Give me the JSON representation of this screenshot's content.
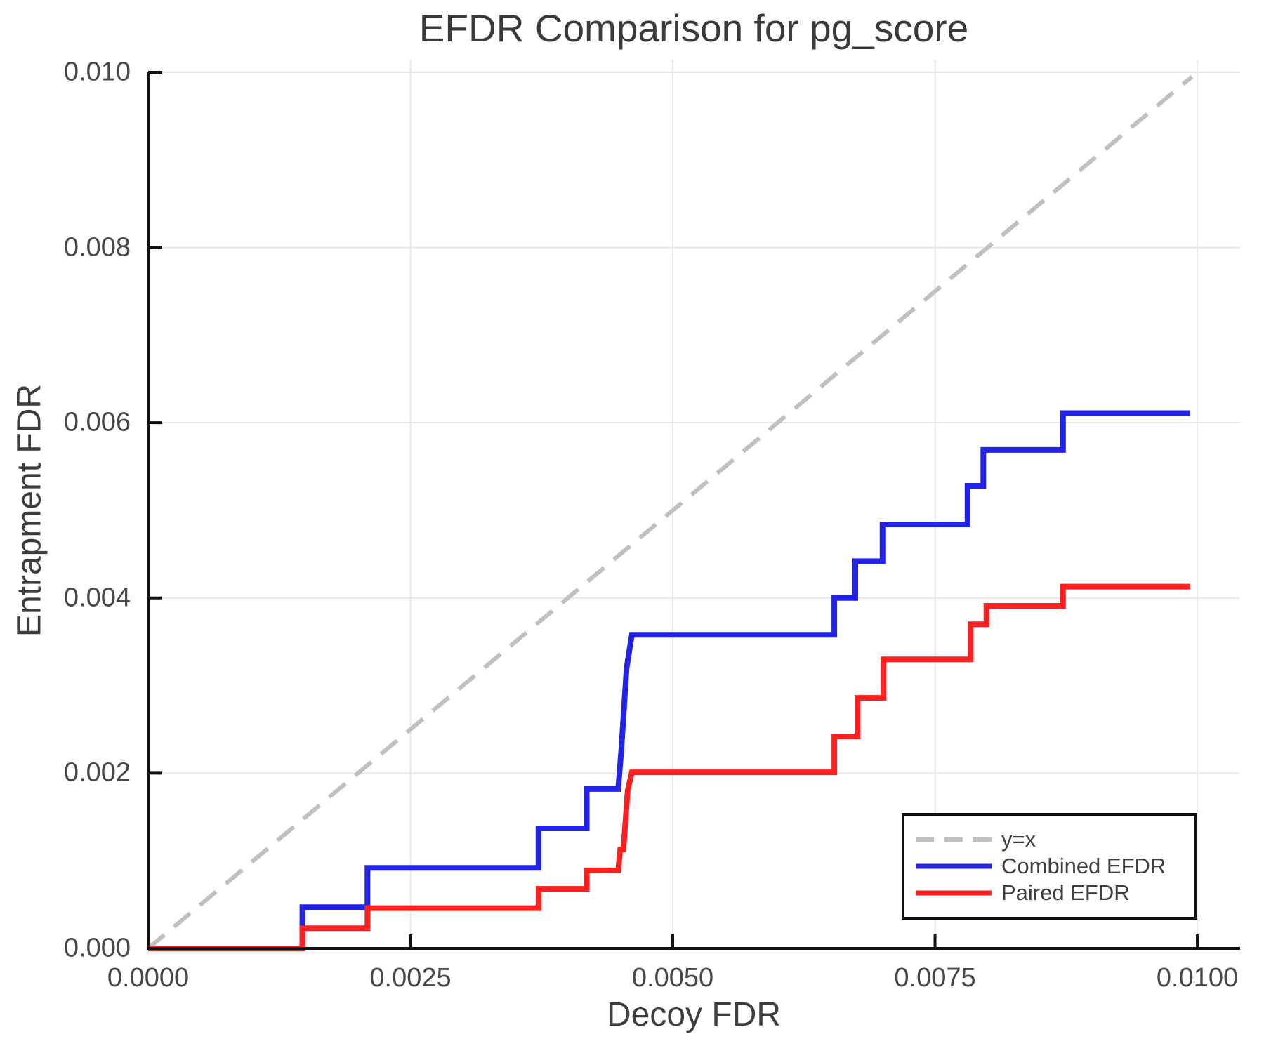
{
  "title": "EFDR Comparison for pg_score",
  "chart_data": {
    "type": "line",
    "subtype": "step",
    "title": "EFDR Comparison for pg_score",
    "xlabel": "Decoy FDR",
    "ylabel": "Entrapment FDR",
    "grid": true,
    "background": "#ffffff",
    "grid_color": "#e7e7e7",
    "spine_color": "#111111",
    "legend_position": "lower right",
    "x_axis": {
      "min": 0,
      "max": 0.010408,
      "ticks": [
        {
          "value": 0.0,
          "label": "0.0000"
        },
        {
          "value": 0.0025,
          "label": "0.0025"
        },
        {
          "value": 0.005,
          "label": "0.0050"
        },
        {
          "value": 0.0075,
          "label": "0.0075"
        },
        {
          "value": 0.01,
          "label": "0.0100"
        }
      ]
    },
    "y_axis": {
      "min": 0,
      "max": 0.010144,
      "ticks": [
        {
          "value": 0.0,
          "label": "0.000"
        },
        {
          "value": 0.002,
          "label": "0.002"
        },
        {
          "value": 0.004,
          "label": "0.004"
        },
        {
          "value": 0.006,
          "label": "0.006"
        },
        {
          "value": 0.008,
          "label": "0.008"
        },
        {
          "value": 0.01,
          "label": "0.010"
        }
      ]
    },
    "reference_line": {
      "name": "y=x",
      "color": "#c0c0c0",
      "dashed": true,
      "points": [
        [
          0,
          0
        ],
        [
          0.00995,
          0.00995
        ]
      ]
    },
    "series": [
      {
        "name": "Combined EFDR",
        "color": "#2222e8",
        "points": [
          [
            0.0,
            0.0
          ],
          [
            0.00147,
            0.0
          ],
          [
            0.00147,
            0.00047
          ],
          [
            0.00209,
            0.00047
          ],
          [
            0.00209,
            0.00092
          ],
          [
            0.00372,
            0.00092
          ],
          [
            0.00372,
            0.00137
          ],
          [
            0.00418,
            0.00137
          ],
          [
            0.00418,
            0.00182
          ],
          [
            0.00448,
            0.00182
          ],
          [
            0.00451,
            0.00227
          ],
          [
            0.00456,
            0.0032
          ],
          [
            0.00461,
            0.00358
          ],
          [
            0.00654,
            0.00358
          ],
          [
            0.00654,
            0.004
          ],
          [
            0.00674,
            0.004
          ],
          [
            0.00674,
            0.00442
          ],
          [
            0.007,
            0.00442
          ],
          [
            0.007,
            0.00484
          ],
          [
            0.00781,
            0.00484
          ],
          [
            0.00781,
            0.00528
          ],
          [
            0.00796,
            0.00528
          ],
          [
            0.00796,
            0.00569
          ],
          [
            0.00872,
            0.00569
          ],
          [
            0.00872,
            0.00611
          ],
          [
            0.00993,
            0.00611
          ]
        ]
      },
      {
        "name": "Paired EFDR",
        "color": "#ff1f1f",
        "points": [
          [
            0.0,
            0.0
          ],
          [
            0.00147,
            0.0
          ],
          [
            0.00147,
            0.00023
          ],
          [
            0.00209,
            0.00023
          ],
          [
            0.00209,
            0.00046
          ],
          [
            0.00372,
            0.00046
          ],
          [
            0.00372,
            0.00068
          ],
          [
            0.00418,
            0.00068
          ],
          [
            0.00418,
            0.00089
          ],
          [
            0.00448,
            0.00089
          ],
          [
            0.0045,
            0.00113
          ],
          [
            0.00453,
            0.00113
          ],
          [
            0.00457,
            0.0018
          ],
          [
            0.00461,
            0.00201
          ],
          [
            0.00654,
            0.00201
          ],
          [
            0.00654,
            0.00242
          ],
          [
            0.00676,
            0.00242
          ],
          [
            0.00676,
            0.00286
          ],
          [
            0.00701,
            0.00286
          ],
          [
            0.00701,
            0.0033
          ],
          [
            0.00784,
            0.0033
          ],
          [
            0.00784,
            0.0037
          ],
          [
            0.00799,
            0.0037
          ],
          [
            0.00799,
            0.00391
          ],
          [
            0.00872,
            0.00391
          ],
          [
            0.00872,
            0.00413
          ],
          [
            0.00993,
            0.00413
          ]
        ]
      }
    ],
    "legend": [
      {
        "label": "y=x",
        "color": "#c0c0c0",
        "dashed": true
      },
      {
        "label": "Combined EFDR",
        "color": "#2222e8",
        "dashed": false
      },
      {
        "label": "Paired EFDR",
        "color": "#ff1f1f",
        "dashed": false
      }
    ]
  }
}
